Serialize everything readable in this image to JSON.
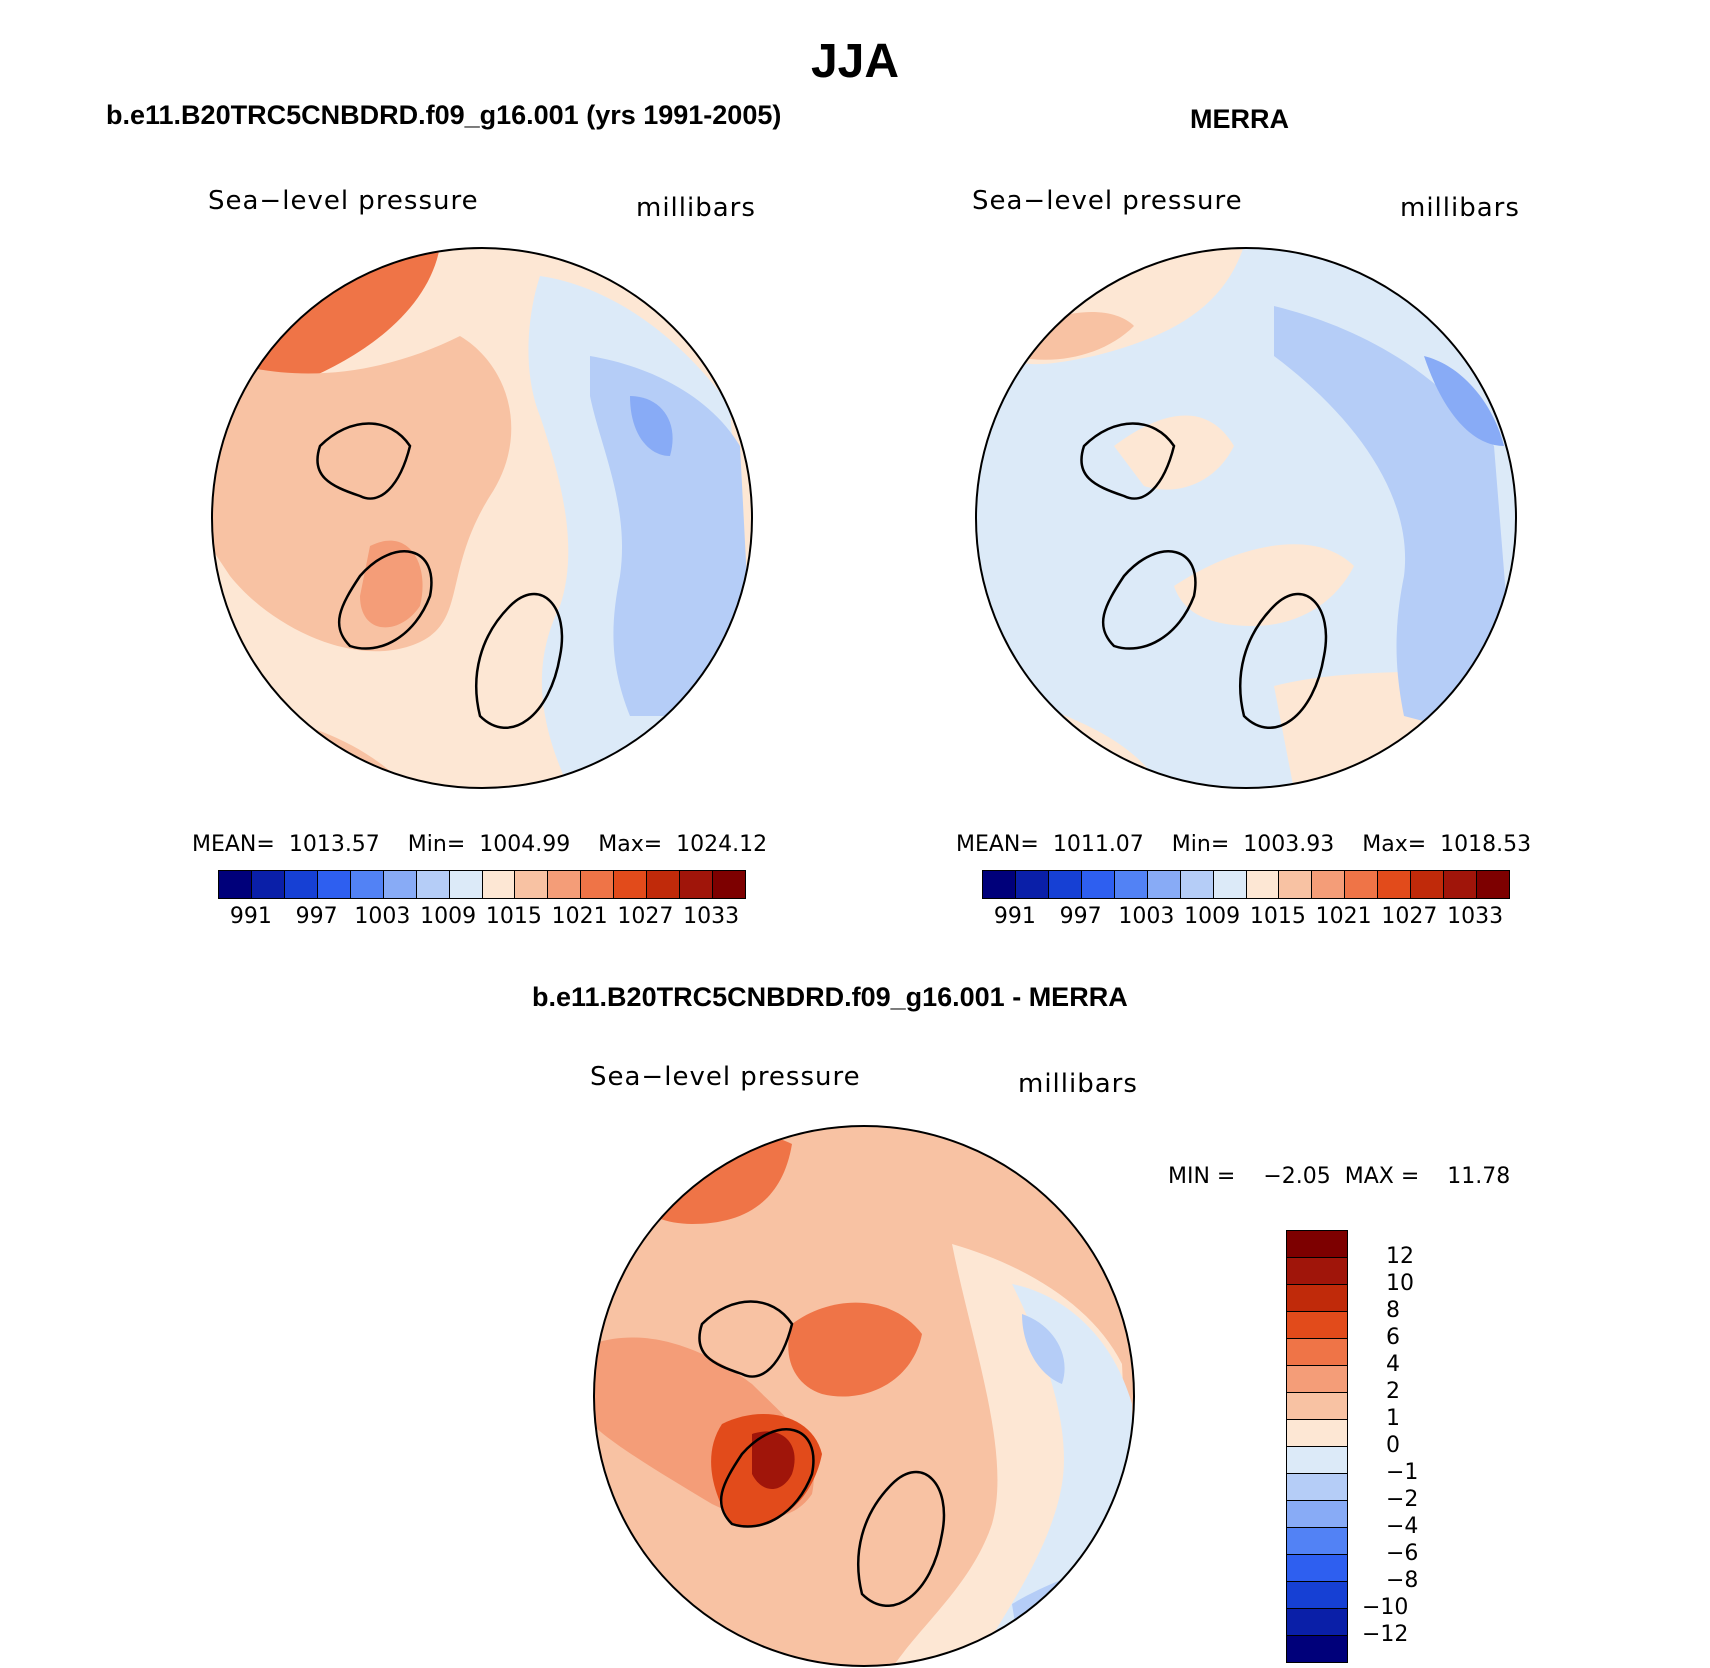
{
  "title": "JJA",
  "panels": {
    "model": {
      "title": "b.e11.B20TRC5CNBDRD.f09_g16.001 (yrs 1991-2005)",
      "var": "Sea−level pressure",
      "units": "millibars",
      "mean_label": "MEAN=",
      "mean": "1013.57",
      "min_label": "Min=",
      "min": "1004.99",
      "max_label": "Max=",
      "max": "1024.12"
    },
    "obs": {
      "title": "MERRA",
      "var": "Sea−level pressure",
      "units": "millibars",
      "mean_label": "MEAN=",
      "mean": "1011.07",
      "min_label": "Min=",
      "min": "1003.93",
      "max_label": "Max=",
      "max": "1018.53"
    },
    "diff": {
      "title": "b.e11.B20TRC5CNBDRD.f09_g16.001 - MERRA",
      "var": "Sea−level pressure",
      "units": "millibars",
      "min_label": "MIN =",
      "min": "−2.05",
      "max_label": "MAX =",
      "max": "11.78"
    }
  },
  "chart_data": [
    {
      "type": "heatmap",
      "projection": "north polar stereographic",
      "title": "b.e11.B20TRC5CNBDRD.f09_g16.001 (yrs 1991-2005)",
      "variable": "Sea-level pressure",
      "units": "millibars",
      "stats": {
        "mean": 1013.57,
        "min": 1004.99,
        "max": 1024.12
      },
      "colorbar_ticks": [
        "991",
        "997",
        "1003",
        "1009",
        "1015",
        "1021",
        "1027",
        "1033"
      ]
    },
    {
      "type": "heatmap",
      "projection": "north polar stereographic",
      "title": "MERRA",
      "variable": "Sea-level pressure",
      "units": "millibars",
      "stats": {
        "mean": 1011.07,
        "min": 1003.93,
        "max": 1018.53
      },
      "colorbar_ticks": [
        "991",
        "997",
        "1003",
        "1009",
        "1015",
        "1021",
        "1027",
        "1033"
      ]
    },
    {
      "type": "heatmap",
      "projection": "north polar stereographic",
      "title": "b.e11.B20TRC5CNBDRD.f09_g16.001 - MERRA",
      "variable": "Sea-level pressure",
      "units": "millibars",
      "stats": {
        "min": -2.05,
        "max": 11.78
      },
      "colorbar_ticks": [
        "12",
        "10",
        "8",
        "6",
        "4",
        "2",
        "1",
        "0",
        "−1",
        "−2",
        "−4",
        "−6",
        "−8",
        "−10",
        "−12"
      ]
    }
  ],
  "colormap": [
    "#00007a",
    "#0a1fa8",
    "#1640d4",
    "#2e5ff0",
    "#5282f5",
    "#88abf6",
    "#b5cdf7",
    "#dceaf8",
    "#fde7d4",
    "#f8c2a3",
    "#f49d78",
    "#ef7447",
    "#e24b1b",
    "#c02a0a",
    "#a0150a",
    "#7d0000"
  ],
  "diff_colormap": [
    "#7d0000",
    "#a0150a",
    "#c02a0a",
    "#e24b1b",
    "#ef7447",
    "#f49d78",
    "#f8c2a3",
    "#fde7d4",
    "#dceaf8",
    "#b5cdf7",
    "#88abf6",
    "#5282f5",
    "#2e5ff0",
    "#1640d4",
    "#0a1fa8",
    "#00007a"
  ]
}
